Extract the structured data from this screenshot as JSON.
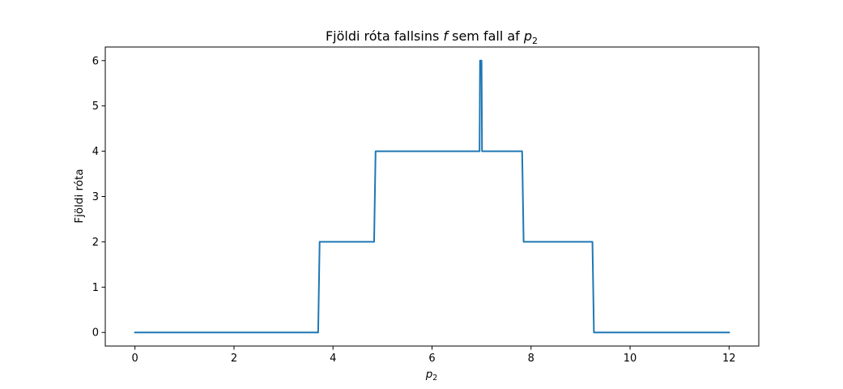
{
  "chart_data": {
    "type": "line",
    "title_parts": {
      "prefix": "Fjöldi róta fallsins ",
      "func": "f",
      "middle": " sem fall af ",
      "var": "p",
      "sub": "2"
    },
    "xlabel": {
      "var": "p",
      "sub": "2"
    },
    "ylabel": "Fjöldi róta",
    "xlim": [
      -0.6,
      12.6
    ],
    "ylim": [
      -0.3,
      6.3
    ],
    "xticks": [
      0,
      2,
      4,
      6,
      8,
      10,
      12
    ],
    "yticks": [
      0,
      1,
      2,
      3,
      4,
      5,
      6
    ],
    "grid": false,
    "line_color": "#1f77b4",
    "series": [
      {
        "x": [
          0,
          3.7,
          3.73,
          4.83,
          4.86,
          6.96,
          6.97,
          7.0,
          7.01,
          7.82,
          7.85,
          9.24,
          9.27,
          12
        ],
        "y": [
          0,
          0,
          2,
          2,
          4,
          4,
          6,
          6,
          4,
          4,
          2,
          2,
          0,
          0
        ]
      }
    ]
  }
}
